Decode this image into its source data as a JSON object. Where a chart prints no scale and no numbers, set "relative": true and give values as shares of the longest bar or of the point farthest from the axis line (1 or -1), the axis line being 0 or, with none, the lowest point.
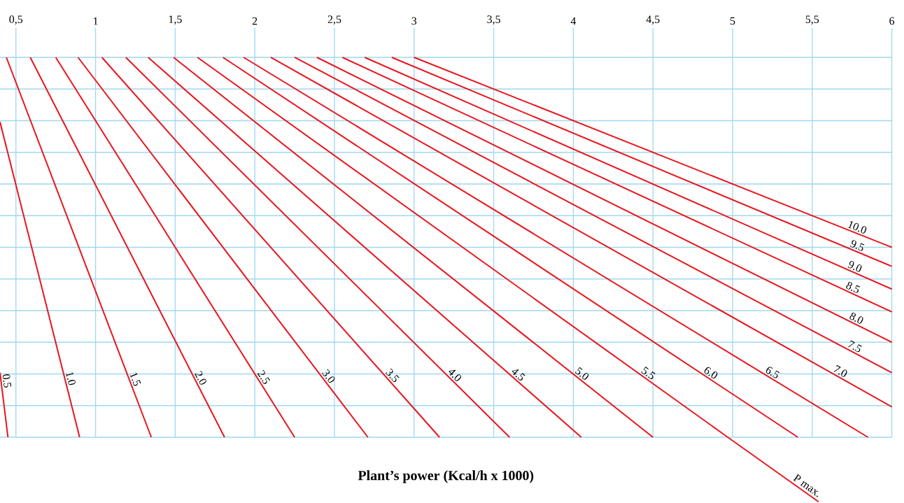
{
  "chart_data": {
    "type": "line",
    "xlabel": "**Plant’s power (Kcal/h x 1000)**",
    "relative": true,
    "xlim": [
      0.4,
      6
    ],
    "xticks": [
      {
        "value": 0.5,
        "label": "0,5"
      },
      1,
      {
        "value": 1.5,
        "label": "1,5"
      },
      2,
      {
        "value": 2.5,
        "label": "2,5"
      },
      3,
      {
        "value": 3.5,
        "label": "3,5"
      },
      4,
      {
        "value": 4.5,
        "label": "4,5"
      },
      5,
      {
        "value": 5.5,
        "label": "5,5"
      },
      6
    ],
    "tick_labels": "x",
    "grid": true,
    "marker": "none",
    "line_style": "solid",
    "series": [
      {
        "name": "0.5",
        "color": "#e8161e",
        "x": [
          0.4,
          0.45
        ],
        "values": [
          0.17,
          0
        ]
      },
      {
        "name": "1.0",
        "color": "#e8161e",
        "x": [
          0.4,
          0.9
        ],
        "values": [
          0.83,
          0
        ]
      },
      {
        "name": "1.5",
        "color": "#e8161e",
        "x": [
          0.44,
          1.35
        ],
        "values": [
          1,
          0
        ]
      },
      {
        "name": "2.0",
        "color": "#e8161e",
        "x": [
          0.59,
          1.81
        ],
        "values": [
          1,
          0
        ]
      },
      {
        "name": "2.5",
        "color": "#e8161e",
        "x": [
          0.75,
          2.25
        ],
        "values": [
          1,
          0
        ]
      },
      {
        "name": "3.0",
        "color": "#e8161e",
        "x": [
          0.89,
          2.71
        ],
        "values": [
          1,
          0
        ]
      },
      {
        "name": "3.5",
        "color": "#e8161e",
        "x": [
          1.04,
          3.16
        ],
        "values": [
          1,
          0
        ]
      },
      {
        "name": "4.0",
        "color": "#e8161e",
        "x": [
          1.19,
          3.6
        ],
        "values": [
          1,
          0
        ]
      },
      {
        "name": "4.5",
        "color": "#e8161e",
        "x": [
          1.33,
          4.05
        ],
        "values": [
          1,
          0
        ]
      },
      {
        "name": "5.0",
        "color": "#e8161e",
        "x": [
          1.49,
          4.5
        ],
        "values": [
          1,
          0
        ]
      },
      {
        "name": "5.5",
        "color": "#e8161e",
        "x": [
          1.64,
          4.97,
          5.54
        ],
        "values": [
          1,
          0,
          -0.17
        ]
      },
      {
        "name": "6.0",
        "color": "#e8161e",
        "x": [
          1.8,
          5.41
        ],
        "values": [
          1,
          0
        ]
      },
      {
        "name": "6.5",
        "color": "#e8161e",
        "x": [
          1.93,
          5.85
        ],
        "values": [
          1,
          0
        ]
      },
      {
        "name": "7.0",
        "color": "#e8161e",
        "x": [
          2.1,
          6
        ],
        "values": [
          1,
          0.08
        ]
      },
      {
        "name": "7.5",
        "color": "#e8161e",
        "x": [
          2.25,
          6
        ],
        "values": [
          1,
          0.17
        ]
      },
      {
        "name": "8.0",
        "color": "#e8161e",
        "x": [
          2.39,
          6
        ],
        "values": [
          1,
          0.25
        ]
      },
      {
        "name": "8.5",
        "color": "#e8161e",
        "x": [
          2.55,
          6
        ],
        "values": [
          1,
          0.33
        ]
      },
      {
        "name": "9.0",
        "color": "#e8161e",
        "x": [
          2.69,
          6
        ],
        "values": [
          1,
          0.39
        ]
      },
      {
        "name": "9.5",
        "color": "#e8161e",
        "x": [
          2.86,
          6
        ],
        "values": [
          1,
          0.45
        ]
      },
      {
        "name": "10.0",
        "color": "#e8161e",
        "x": [
          3.0,
          6
        ],
        "values": [
          1,
          0.5
        ]
      }
    ],
    "annotations": [
      {
        "text": "P max.",
        "x": 5.54,
        "y": -0.17
      }
    ]
  }
}
